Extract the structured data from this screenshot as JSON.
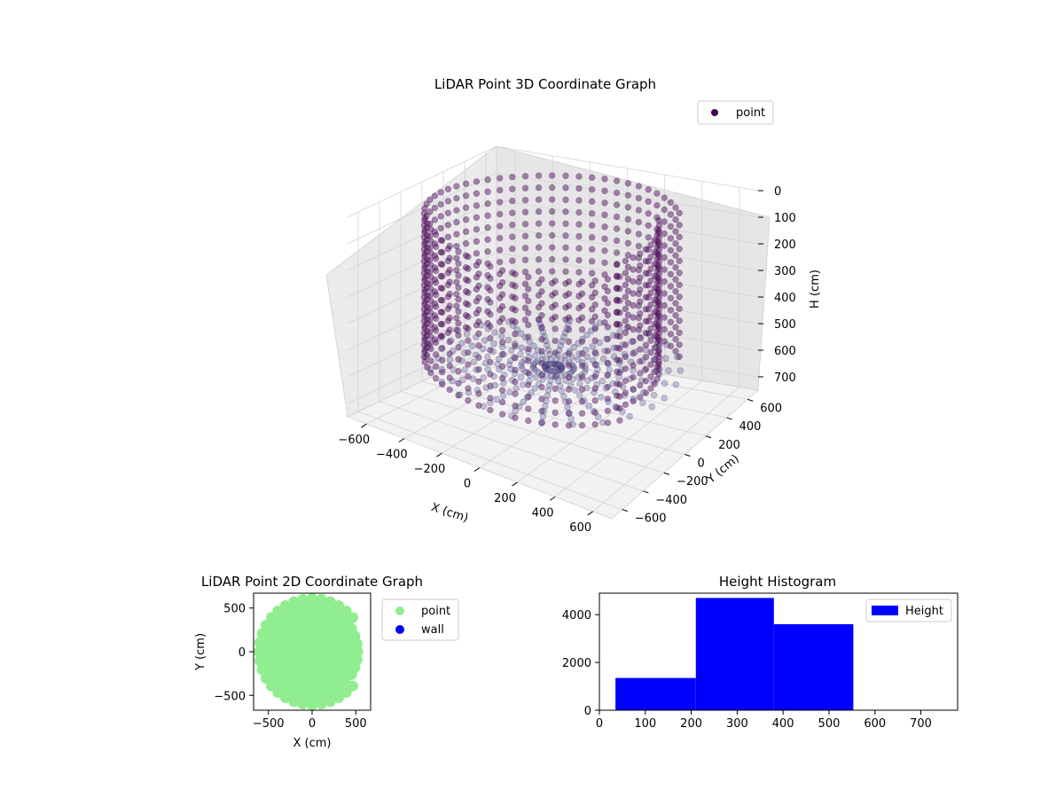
{
  "colors": {
    "point3d": "#440154",
    "point3d_light": "#6a4a8c",
    "floor": "#3b4d8c",
    "point2d": "#90ee90",
    "wall": "#0000ff",
    "hist": "#0000ff",
    "pane": "#f2f2f2",
    "grid": "#d3d3d3"
  },
  "chart_data": [
    {
      "type": "scatter",
      "title": "LiDAR Point 3D Coordinate Graph",
      "xlabel": "X (cm)",
      "ylabel": "Y (cm)",
      "zlabel": "H (cm)",
      "xlim": [
        -700,
        700
      ],
      "ylim": [
        -700,
        700
      ],
      "zlim": [
        0,
        750
      ],
      "z_inverted": true,
      "xticks": [
        "−600",
        "−400",
        "−200",
        "0",
        "200",
        "400",
        "600"
      ],
      "yticks": [
        "−600",
        "−400",
        "−200",
        "0",
        "200",
        "400",
        "600"
      ],
      "zticks": [
        "0",
        "100",
        "200",
        "300",
        "400",
        "500",
        "600",
        "700"
      ],
      "legend": [
        "point"
      ],
      "legend_position": "upper right",
      "grid": true,
      "series": [
        {
          "name": "point",
          "color": "#440154",
          "description_shape": "bowl-shaped point cloud: ring of points around a circular room wall, heights from about 20 to 560 cm, centered near origin with radius about 600 cm",
          "wall_radius_cm": 600,
          "height_range_cm": [
            20,
            560
          ]
        }
      ]
    },
    {
      "type": "scatter",
      "title": "LiDAR Point 2D Coordinate Graph",
      "xlabel": "X (cm)",
      "ylabel": "Y (cm)",
      "xlim": [
        -670,
        670
      ],
      "ylim": [
        -670,
        670
      ],
      "xticks": [
        "−500",
        "0",
        "500"
      ],
      "yticks": [
        "−500",
        "0",
        "500"
      ],
      "legend": [
        "point",
        "wall"
      ],
      "legend_position": "outside right",
      "series": [
        {
          "name": "point",
          "color": "#90ee90",
          "radius_cm": 610
        },
        {
          "name": "wall",
          "color": "#0000ff",
          "values": []
        }
      ]
    },
    {
      "type": "bar",
      "title": "Height Histogram",
      "xlim": [
        0,
        780
      ],
      "ylim": [
        0,
        4900
      ],
      "xticks": [
        "0",
        "100",
        "200",
        "300",
        "400",
        "500",
        "600",
        "700"
      ],
      "yticks": [
        "0",
        "2000",
        "4000"
      ],
      "legend": [
        "Height"
      ],
      "legend_position": "upper right",
      "bins": [
        {
          "start": 35,
          "end": 210,
          "count": 1350
        },
        {
          "start": 210,
          "end": 380,
          "count": 4700
        },
        {
          "start": 380,
          "end": 553,
          "count": 3600
        }
      ]
    }
  ]
}
